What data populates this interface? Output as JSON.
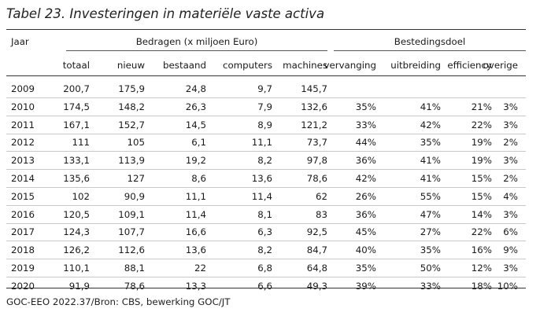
{
  "title": "Tabel 23. Investeringen in materiële vaste activa",
  "header": {
    "jaar": "Jaar",
    "bedragen_group": "Bedragen (x miljoen Euro)",
    "besteding_group": "Bestedingsdoel",
    "columns": [
      "totaal",
      "nieuw",
      "bestaand",
      "computers",
      "machines",
      "vervanging",
      "uitbreiding",
      "efficiency",
      "overige"
    ]
  },
  "rows": [
    {
      "jaar": "2009",
      "cells": [
        "200,7",
        "175,9",
        "24,8",
        "9,7",
        "145,7",
        "",
        "",
        "",
        ""
      ]
    },
    {
      "jaar": "2010",
      "cells": [
        "174,5",
        "148,2",
        "26,3",
        "7,9",
        "132,6",
        "35%",
        "41%",
        "21%",
        "3%"
      ]
    },
    {
      "jaar": "2011",
      "cells": [
        "167,1",
        "152,7",
        "14,5",
        "8,9",
        "121,2",
        "33%",
        "42%",
        "22%",
        "3%"
      ]
    },
    {
      "jaar": "2012",
      "cells": [
        "111",
        "105",
        "6,1",
        "11,1",
        "73,7",
        "44%",
        "35%",
        "19%",
        "2%"
      ]
    },
    {
      "jaar": "2013",
      "cells": [
        "133,1",
        "113,9",
        "19,2",
        "8,2",
        "97,8",
        "36%",
        "41%",
        "19%",
        "3%"
      ]
    },
    {
      "jaar": "2014",
      "cells": [
        "135,6",
        "127",
        "8,6",
        "13,6",
        "78,6",
        "42%",
        "41%",
        "15%",
        "2%"
      ]
    },
    {
      "jaar": "2015",
      "cells": [
        "102",
        "90,9",
        "11,1",
        "11,4",
        "62",
        "26%",
        "55%",
        "15%",
        "4%"
      ]
    },
    {
      "jaar": "2016",
      "cells": [
        "120,5",
        "109,1",
        "11,4",
        "8,1",
        "83",
        "36%",
        "47%",
        "14%",
        "3%"
      ]
    },
    {
      "jaar": "2017",
      "cells": [
        "124,3",
        "107,7",
        "16,6",
        "6,3",
        "92,5",
        "45%",
        "27%",
        "22%",
        "6%"
      ]
    },
    {
      "jaar": "2018",
      "cells": [
        "126,2",
        "112,6",
        "13,6",
        "8,2",
        "84,7",
        "40%",
        "35%",
        "16%",
        "9%"
      ]
    },
    {
      "jaar": "2019",
      "cells": [
        "110,1",
        "88,1",
        "22",
        "6,8",
        "64,8",
        "35%",
        "50%",
        "12%",
        "3%"
      ]
    },
    {
      "jaar": "2020",
      "cells": [
        "91,9",
        "78,6",
        "13,3",
        "6,6",
        "49,3",
        "39%",
        "33%",
        "18%",
        "10%"
      ]
    }
  ],
  "footer": "GOC-EEO 2022.37/Bron: CBS, bewerking GOC/JT"
}
